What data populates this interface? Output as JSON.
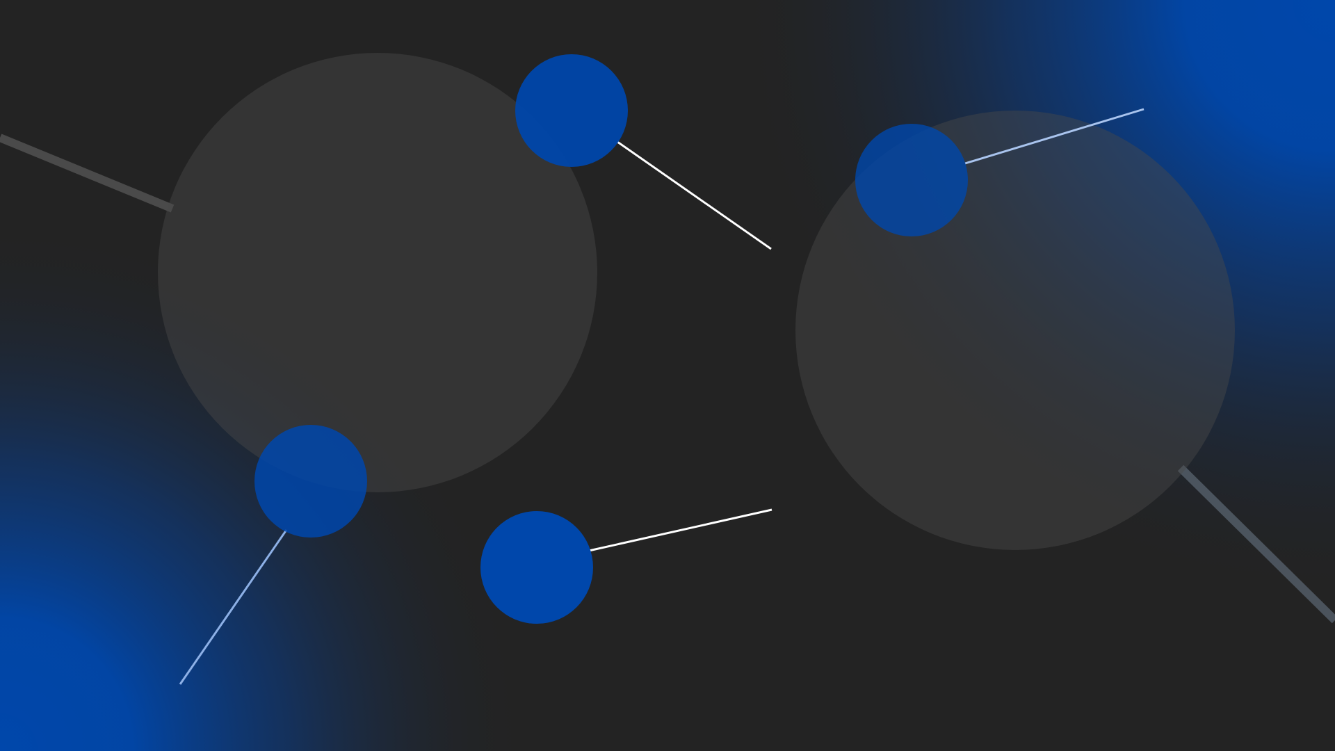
{
  "colors": {
    "background": "#232323",
    "accent": "#0047AB",
    "accent_light": "#6A9BE0",
    "big_circle": "#3A3A3A",
    "line_white": "#FFFFFF",
    "line_gray": "#555555",
    "line_slate": "#5A6470"
  },
  "shapes": {
    "gradient_top_right": "accent",
    "gradient_bottom_left": "accent",
    "big_circles": 2,
    "small_circles": 4,
    "connector_lines": 4,
    "edge_strokes": 2
  }
}
